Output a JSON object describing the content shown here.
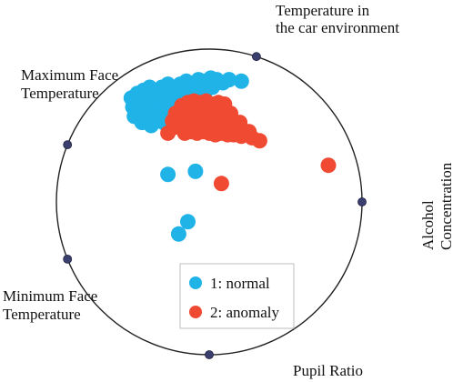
{
  "chart_data": {
    "type": "scatter",
    "projection": "radial-visualization",
    "anchors": [
      {
        "label": "Temperature in the car environment",
        "lines": [
          "Temperature in",
          "the car environment"
        ],
        "angle_deg": 72
      },
      {
        "label": "Alcohol Concentration",
        "lines": [
          "Alcohol",
          "Concentration"
        ],
        "angle_deg": 0
      },
      {
        "label": "Pupil Ratio",
        "lines": [
          "Pupil Ratio"
        ],
        "angle_deg": -90
      },
      {
        "label": "Minimum Face Temperature",
        "lines": [
          "Minimum Face",
          "Temperature"
        ],
        "angle_deg": 202
      },
      {
        "label": "Maximum Face Temperature",
        "lines": [
          "Maximum Face",
          "Temperature"
        ],
        "angle_deg": 158
      }
    ],
    "legend": {
      "placement": "bottom-center",
      "entries": [
        {
          "label": "1: normal",
          "color": "#1fb3e8"
        },
        {
          "label": "2: anomaly",
          "color": "#f04a32"
        }
      ]
    },
    "series": [
      {
        "name": "1: normal",
        "color": "#1fb3e8",
        "points": [
          [
            -0.51,
            0.68
          ],
          [
            -0.47,
            0.71
          ],
          [
            -0.43,
            0.73
          ],
          [
            -0.39,
            0.75
          ],
          [
            -0.35,
            0.72
          ],
          [
            -0.31,
            0.75
          ],
          [
            -0.27,
            0.77
          ],
          [
            -0.23,
            0.74
          ],
          [
            -0.19,
            0.77
          ],
          [
            -0.15,
            0.79
          ],
          [
            -0.11,
            0.77
          ],
          [
            -0.07,
            0.8
          ],
          [
            -0.03,
            0.79
          ],
          [
            0.01,
            0.81
          ],
          [
            0.05,
            0.8
          ],
          [
            0.09,
            0.78
          ],
          [
            0.13,
            0.8
          ],
          [
            0.21,
            0.79
          ],
          [
            -0.5,
            0.62
          ],
          [
            -0.46,
            0.64
          ],
          [
            -0.42,
            0.66
          ],
          [
            -0.38,
            0.68
          ],
          [
            -0.34,
            0.66
          ],
          [
            -0.3,
            0.69
          ],
          [
            -0.26,
            0.7
          ],
          [
            -0.22,
            0.68
          ],
          [
            -0.18,
            0.71
          ],
          [
            -0.14,
            0.73
          ],
          [
            -0.1,
            0.71
          ],
          [
            -0.06,
            0.74
          ],
          [
            -0.02,
            0.73
          ],
          [
            0.02,
            0.75
          ],
          [
            -0.49,
            0.56
          ],
          [
            -0.45,
            0.58
          ],
          [
            -0.41,
            0.6
          ],
          [
            -0.37,
            0.62
          ],
          [
            -0.33,
            0.6
          ],
          [
            -0.29,
            0.63
          ],
          [
            -0.25,
            0.64
          ],
          [
            -0.21,
            0.62
          ],
          [
            -0.17,
            0.65
          ],
          [
            -0.13,
            0.67
          ],
          [
            -0.44,
            0.52
          ],
          [
            -0.4,
            0.54
          ],
          [
            -0.36,
            0.56
          ],
          [
            -0.32,
            0.54
          ],
          [
            -0.28,
            0.57
          ],
          [
            -0.24,
            0.58
          ],
          [
            -0.38,
            0.5
          ],
          [
            -0.3,
            0.52
          ],
          [
            -0.27,
            0.18
          ],
          [
            -0.09,
            0.2
          ],
          [
            -0.2,
            -0.21
          ],
          [
            -0.14,
            -0.13
          ]
        ]
      },
      {
        "name": "2: anomaly",
        "color": "#f04a32",
        "points": [
          [
            -0.18,
            0.63
          ],
          [
            -0.14,
            0.65
          ],
          [
            -0.1,
            0.66
          ],
          [
            -0.06,
            0.65
          ],
          [
            -0.02,
            0.66
          ],
          [
            0.02,
            0.64
          ],
          [
            0.06,
            0.65
          ],
          [
            0.1,
            0.64
          ],
          [
            -0.22,
            0.58
          ],
          [
            -0.18,
            0.6
          ],
          [
            -0.14,
            0.6
          ],
          [
            -0.1,
            0.61
          ],
          [
            -0.06,
            0.6
          ],
          [
            -0.02,
            0.61
          ],
          [
            0.02,
            0.6
          ],
          [
            0.06,
            0.59
          ],
          [
            0.1,
            0.6
          ],
          [
            0.14,
            0.58
          ],
          [
            -0.24,
            0.53
          ],
          [
            -0.2,
            0.55
          ],
          [
            -0.16,
            0.55
          ],
          [
            -0.12,
            0.56
          ],
          [
            -0.08,
            0.55
          ],
          [
            -0.04,
            0.56
          ],
          [
            0,
            0.55
          ],
          [
            0.04,
            0.54
          ],
          [
            0.08,
            0.55
          ],
          [
            0.12,
            0.53
          ],
          [
            0.16,
            0.53
          ],
          [
            0.2,
            0.52
          ],
          [
            -0.22,
            0.49
          ],
          [
            -0.18,
            0.5
          ],
          [
            -0.14,
            0.5
          ],
          [
            -0.1,
            0.51
          ],
          [
            -0.06,
            0.5
          ],
          [
            -0.02,
            0.51
          ],
          [
            0.02,
            0.5
          ],
          [
            0.06,
            0.49
          ],
          [
            0.1,
            0.5
          ],
          [
            0.14,
            0.49
          ],
          [
            0.18,
            0.48
          ],
          [
            0.22,
            0.47
          ],
          [
            0.26,
            0.46
          ],
          [
            -0.27,
            0.45
          ],
          [
            -0.16,
            0.45
          ],
          [
            -0.12,
            0.46
          ],
          [
            -0.08,
            0.45
          ],
          [
            -0.04,
            0.46
          ],
          [
            0,
            0.45
          ],
          [
            0.04,
            0.44
          ],
          [
            0.08,
            0.45
          ],
          [
            0.12,
            0.44
          ],
          [
            0.16,
            0.44
          ],
          [
            0.21,
            0.43
          ],
          [
            0.28,
            0.42
          ],
          [
            0.33,
            0.4
          ],
          [
            0.78,
            0.24
          ],
          [
            0.08,
            0.12
          ]
        ]
      }
    ]
  }
}
